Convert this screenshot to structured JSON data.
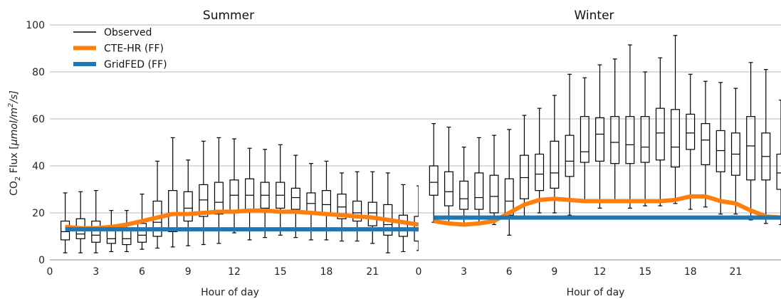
{
  "chart_data": {
    "type": "box-line",
    "ylabel": {
      "prefix": "CO",
      "sub": "2",
      "mid": " Flux [",
      "unit": "μmol/m",
      "sup": "2",
      "suffix": "/s]"
    },
    "ylim": [
      0,
      100
    ],
    "yticks": [
      "0",
      "20",
      "40",
      "60",
      "80",
      "100"
    ],
    "xticks": [
      "0",
      "3",
      "6",
      "9",
      "12",
      "15",
      "18",
      "21"
    ],
    "grid": "horizontal",
    "legend": {
      "placement": "top-left",
      "entries": [
        {
          "label": "Observed",
          "color": "#000000"
        },
        {
          "label": "CTE-HR (FF)",
          "color": "#ff7f0e"
        },
        {
          "label": "GridFED (FF)",
          "color": "#1f77b4"
        }
      ]
    },
    "panels": [
      {
        "title": "Summer",
        "xlabel": "Hour of day",
        "xlim": [
          0,
          24
        ],
        "boxes": [
          {
            "hour": 1,
            "whislo": 3,
            "q1": 8.5,
            "med": 12,
            "q3": 16.5,
            "whishi": 28.5
          },
          {
            "hour": 2,
            "whislo": 3,
            "q1": 9,
            "med": 11,
            "q3": 17.5,
            "whishi": 29
          },
          {
            "hour": 3,
            "whislo": 3,
            "q1": 7.5,
            "med": 10.5,
            "q3": 16.5,
            "whishi": 29.5
          },
          {
            "hour": 4,
            "whislo": 3.5,
            "q1": 7,
            "med": 9,
            "q3": 14,
            "whishi": 21
          },
          {
            "hour": 5,
            "whislo": 3.5,
            "q1": 6.5,
            "med": 9,
            "q3": 13,
            "whishi": 21
          },
          {
            "hour": 6,
            "whislo": 4.5,
            "q1": 7.5,
            "med": 10.5,
            "q3": 15.5,
            "whishi": 28
          },
          {
            "hour": 7,
            "whislo": 5,
            "q1": 10,
            "med": 16,
            "q3": 25,
            "whishi": 42
          },
          {
            "hour": 8,
            "whislo": 5.5,
            "q1": 12,
            "med": 20,
            "q3": 29.5,
            "whishi": 52
          },
          {
            "hour": 9,
            "whislo": 6,
            "q1": 16.5,
            "med": 22,
            "q3": 29,
            "whishi": 42.5
          },
          {
            "hour": 10,
            "whislo": 6.5,
            "q1": 18.5,
            "med": 25.5,
            "q3": 32,
            "whishi": 50.5
          },
          {
            "hour": 11,
            "whislo": 7,
            "q1": 19.5,
            "med": 24.5,
            "q3": 33,
            "whishi": 52
          },
          {
            "hour": 12,
            "whislo": 11.5,
            "q1": 20,
            "med": 27.5,
            "q3": 34,
            "whishi": 51.5
          },
          {
            "hour": 13,
            "whislo": 8.5,
            "q1": 21.5,
            "med": 27.5,
            "q3": 34.5,
            "whishi": 47.5
          },
          {
            "hour": 14,
            "whislo": 9.5,
            "q1": 22,
            "med": 27.5,
            "q3": 33,
            "whishi": 47
          },
          {
            "hour": 15,
            "whislo": 10.5,
            "q1": 22,
            "med": 27.5,
            "q3": 33,
            "whishi": 49
          },
          {
            "hour": 16,
            "whislo": 9.5,
            "q1": 21.5,
            "med": 26.5,
            "q3": 30.5,
            "whishi": 44.5
          },
          {
            "hour": 17,
            "whislo": 8.5,
            "q1": 19.5,
            "med": 24,
            "q3": 28.5,
            "whishi": 41
          },
          {
            "hour": 18,
            "whislo": 8.5,
            "q1": 19,
            "med": 23.5,
            "q3": 29.5,
            "whishi": 42
          },
          {
            "hour": 19,
            "whislo": 8,
            "q1": 17.5,
            "med": 22.5,
            "q3": 28,
            "whishi": 37
          },
          {
            "hour": 20,
            "whislo": 8,
            "q1": 16.5,
            "med": 20,
            "q3": 25,
            "whishi": 37.5
          },
          {
            "hour": 21,
            "whislo": 7,
            "q1": 14.5,
            "med": 20,
            "q3": 24.5,
            "whishi": 37.5
          },
          {
            "hour": 22,
            "whislo": 3,
            "q1": 10.5,
            "med": 15,
            "q3": 23.5,
            "whishi": 37
          },
          {
            "hour": 23,
            "whislo": 3.5,
            "q1": 10,
            "med": 13,
            "q3": 19,
            "whishi": 32
          },
          {
            "hour": 24,
            "whislo": 4,
            "q1": 8,
            "med": 13,
            "q3": 18.5,
            "whishi": 31.5
          }
        ],
        "series": [
          {
            "name": "CTE-HR (FF)",
            "x": [
              1,
              2,
              3,
              4,
              5,
              6,
              7,
              8,
              9,
              10,
              11,
              12,
              13,
              14,
              15,
              16,
              17,
              18,
              19,
              20,
              21,
              22,
              23,
              24
            ],
            "values": [
              14,
              13.5,
              13.5,
              14,
              15,
              16.5,
              18,
              19.5,
              19.5,
              20,
              20.5,
              20.5,
              21,
              21,
              20.5,
              20.5,
              20,
              19.5,
              19,
              18.5,
              18,
              17,
              16,
              15
            ]
          },
          {
            "name": "GridFED (FF)",
            "x": [
              1,
              2,
              3,
              4,
              5,
              6,
              7,
              8,
              9,
              10,
              11,
              12,
              13,
              14,
              15,
              16,
              17,
              18,
              19,
              20,
              21,
              22,
              23,
              24
            ],
            "values": [
              13,
              13,
              13,
              13,
              13,
              13,
              13,
              13,
              13,
              13,
              13,
              13,
              13,
              13,
              13,
              13,
              13,
              13,
              13,
              13,
              13,
              13,
              13,
              13
            ]
          }
        ]
      },
      {
        "title": "Winter",
        "xlabel": "Hour of day",
        "xlim": [
          0,
          24
        ],
        "boxes": [
          {
            "hour": 1,
            "whislo": 16,
            "q1": 27.5,
            "med": 33,
            "q3": 40,
            "whishi": 58
          },
          {
            "hour": 2,
            "whislo": 15,
            "q1": 23,
            "med": 29,
            "q3": 37.5,
            "whishi": 56.5
          },
          {
            "hour": 3,
            "whislo": 14.5,
            "q1": 21.5,
            "med": 26,
            "q3": 33.5,
            "whishi": 48
          },
          {
            "hour": 4,
            "whislo": 15,
            "q1": 21.5,
            "med": 26.5,
            "q3": 37,
            "whishi": 52
          },
          {
            "hour": 5,
            "whislo": 15,
            "q1": 20,
            "med": 27,
            "q3": 36,
            "whishi": 53
          },
          {
            "hour": 6,
            "whislo": 10.5,
            "q1": 19,
            "med": 25,
            "q3": 34.5,
            "whishi": 55.5
          },
          {
            "hour": 7,
            "whislo": 18.5,
            "q1": 26,
            "med": 35,
            "q3": 44.5,
            "whishi": 61.5
          },
          {
            "hour": 8,
            "whislo": 20,
            "q1": 29.5,
            "med": 36.5,
            "q3": 45,
            "whishi": 64.5
          },
          {
            "hour": 9,
            "whislo": 20,
            "q1": 30.5,
            "med": 37,
            "q3": 50.5,
            "whishi": 70
          },
          {
            "hour": 10,
            "whislo": 19,
            "q1": 35.5,
            "med": 42,
            "q3": 53,
            "whishi": 79
          },
          {
            "hour": 11,
            "whislo": 25,
            "q1": 41.5,
            "med": 46,
            "q3": 61,
            "whishi": 77.5
          },
          {
            "hour": 12,
            "whislo": 22,
            "q1": 42,
            "med": 53.5,
            "q3": 60.5,
            "whishi": 83
          },
          {
            "hour": 13,
            "whislo": 24.5,
            "q1": 41,
            "med": 50,
            "q3": 61,
            "whishi": 85.5
          },
          {
            "hour": 14,
            "whislo": 22,
            "q1": 41,
            "med": 49,
            "q3": 61,
            "whishi": 91.5
          },
          {
            "hour": 15,
            "whislo": 23,
            "q1": 41.5,
            "med": 48,
            "q3": 61,
            "whishi": 80
          },
          {
            "hour": 16,
            "whislo": 23,
            "q1": 42.5,
            "med": 54,
            "q3": 64.5,
            "whishi": 86
          },
          {
            "hour": 17,
            "whislo": 24,
            "q1": 39.5,
            "med": 48,
            "q3": 64,
            "whishi": 95.5
          },
          {
            "hour": 18,
            "whislo": 21.5,
            "q1": 47,
            "med": 54,
            "q3": 62,
            "whishi": 79
          },
          {
            "hour": 19,
            "whislo": 22.5,
            "q1": 40.5,
            "med": 51,
            "q3": 58,
            "whishi": 76
          },
          {
            "hour": 20,
            "whislo": 19.5,
            "q1": 37.5,
            "med": 46.5,
            "q3": 55,
            "whishi": 75.5
          },
          {
            "hour": 21,
            "whislo": 19.5,
            "q1": 36,
            "med": 45,
            "q3": 54,
            "whishi": 73
          },
          {
            "hour": 22,
            "whislo": 17,
            "q1": 34,
            "med": 48.5,
            "q3": 61,
            "whishi": 84
          },
          {
            "hour": 23,
            "whislo": 15.5,
            "q1": 34,
            "med": 44,
            "q3": 54,
            "whishi": 81
          },
          {
            "hour": 24,
            "whislo": 15,
            "q1": 30,
            "med": 37,
            "q3": 45,
            "whishi": 68
          }
        ],
        "series": [
          {
            "name": "CTE-HR (FF)",
            "x": [
              1,
              2,
              3,
              4,
              5,
              6,
              7,
              8,
              9,
              10,
              11,
              12,
              13,
              14,
              15,
              16,
              17,
              18,
              19,
              20,
              21,
              22,
              23,
              24
            ],
            "values": [
              16.5,
              15.5,
              15,
              15.5,
              16.5,
              20,
              23.5,
              25.5,
              26,
              25.5,
              25,
              25,
              25,
              25,
              25,
              25,
              25.5,
              27,
              27,
              25,
              24,
              21,
              18.5,
              18
            ]
          },
          {
            "name": "GridFED (FF)",
            "x": [
              1,
              2,
              3,
              4,
              5,
              6,
              7,
              8,
              9,
              10,
              11,
              12,
              13,
              14,
              15,
              16,
              17,
              18,
              19,
              20,
              21,
              22,
              23,
              24
            ],
            "values": [
              18,
              18,
              18,
              18,
              18,
              18,
              18,
              18,
              18,
              18,
              18,
              18,
              18,
              18,
              18,
              18,
              18,
              18,
              18,
              18,
              18,
              18,
              18,
              18
            ]
          }
        ]
      }
    ]
  }
}
